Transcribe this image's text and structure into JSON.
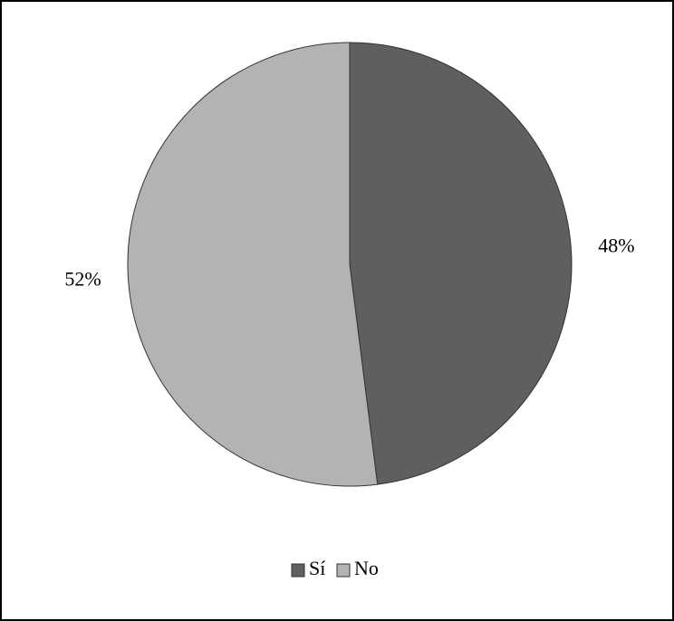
{
  "chart_data": {
    "type": "pie",
    "categories": [
      "Sí",
      "No"
    ],
    "values": [
      48,
      52
    ],
    "value_labels": [
      "48%",
      "52%"
    ],
    "colors": [
      "#5f5f5f",
      "#b3b3b3"
    ],
    "legend": "bottom"
  }
}
